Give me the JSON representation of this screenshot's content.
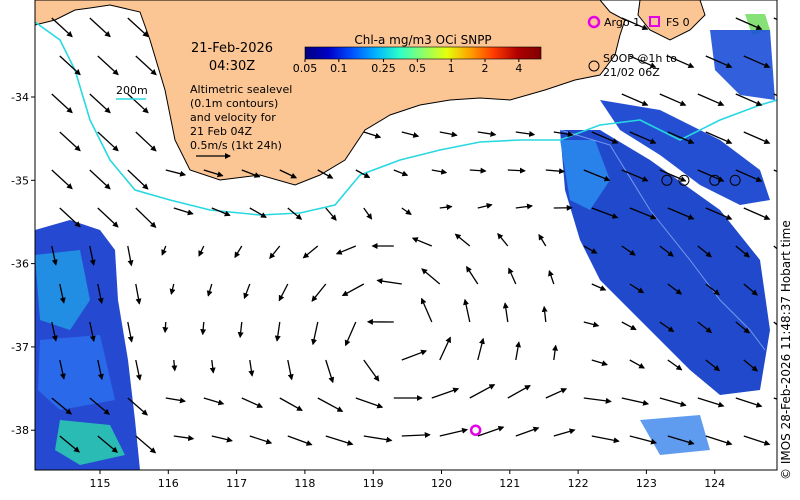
{
  "map": {
    "date": "21-Feb-2026",
    "time": "04:30Z",
    "contour_label": "200m",
    "description_lines": [
      "Altimetric sealevel",
      "(0.1m contours)",
      "and velocity for",
      "21 Feb 04Z",
      "0.5m/s (1kt 24h)"
    ],
    "credit": "© IMOS 28-Feb-2026 11:48:37 Hobart time",
    "lon_ticks": [
      "115",
      "116",
      "117",
      "118",
      "119",
      "120",
      "121",
      "122",
      "123",
      "124"
    ],
    "lat_ticks": [
      "-34",
      "-35",
      "-36",
      "-37",
      "-38"
    ]
  },
  "colorbar": {
    "title": "Chl-a mg/m3 OCi SNPP",
    "tick_labels": [
      "0.05",
      "0.1",
      "0.25",
      "0.5",
      "1",
      "2",
      "4"
    ],
    "colors": [
      "#00007f",
      "#0000c8",
      "#0050ff",
      "#00b4ff",
      "#2cffca",
      "#8cff6a",
      "#e6ff0e",
      "#ffa000",
      "#ff3a00",
      "#b00000",
      "#7f0000"
    ]
  },
  "legend": {
    "argo_label": "Argo 1",
    "fs_label": "FS 0",
    "soop_label_lines": [
      "SOOP @1h to",
      "21/02 06Z"
    ],
    "argo_color": "#e600e6",
    "fs_color": "#e600e6"
  },
  "colors": {
    "land": "#fbc594",
    "contour": "#28d8e0",
    "ocean": "#ffffff"
  },
  "argo_float": {
    "lon": 120.5,
    "lat": -38.0
  },
  "soop_points": [
    {
      "lon": 123.3,
      "lat": -35.0
    },
    {
      "lon": 123.55,
      "lat": -35.0
    },
    {
      "lon": 124.0,
      "lat": -35.0
    },
    {
      "lon": 124.3,
      "lat": -35.0
    }
  ]
}
